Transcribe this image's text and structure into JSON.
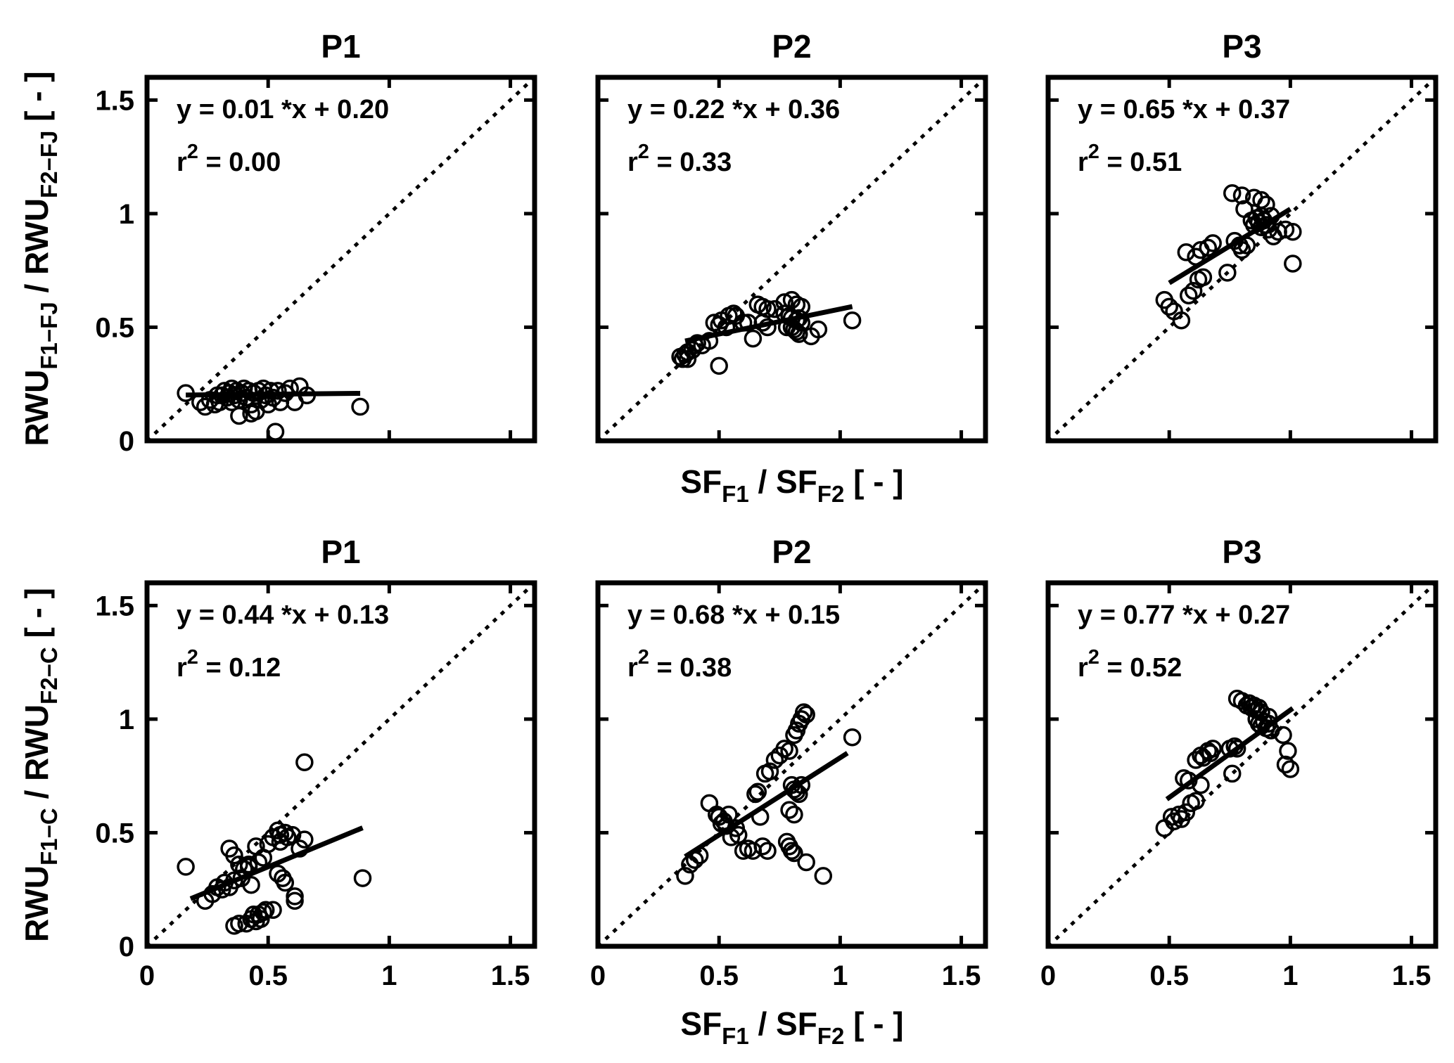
{
  "figure": {
    "background": "#ffffff",
    "ink_color": "#000000",
    "labels": {
      "x_axis": {
        "segments": [
          {
            "t": "SF",
            "sub": false
          },
          {
            "t": "F1",
            "sub": true
          },
          {
            "t": " / SF",
            "sub": false
          },
          {
            "t": "F2",
            "sub": true
          },
          {
            "t": " [ - ]",
            "sub": false
          }
        ]
      },
      "y_axis_top": {
        "segments": [
          {
            "t": "RWU",
            "sub": false
          },
          {
            "t": "F1−FJ",
            "sub": true
          },
          {
            "t": " / RWU",
            "sub": false
          },
          {
            "t": "F2−FJ",
            "sub": true
          },
          {
            "t": " [ - ]",
            "sub": false
          }
        ]
      },
      "y_axis_bottom": {
        "segments": [
          {
            "t": "RWU",
            "sub": false
          },
          {
            "t": "F1−C",
            "sub": true
          },
          {
            "t": " / RWU",
            "sub": false
          },
          {
            "t": "F2−C",
            "sub": true
          },
          {
            "t": " [ - ]",
            "sub": false
          }
        ]
      }
    }
  },
  "chart_data": {
    "type": "scatter",
    "grid": {
      "rows": 2,
      "cols": 3
    },
    "xlim": [
      0,
      1.6
    ],
    "ylim": [
      0,
      1.6
    ],
    "xticks": [
      0,
      0.5,
      1,
      1.5
    ],
    "yticks": [
      0,
      0.5,
      1,
      1.5
    ],
    "xtick_labels": [
      "0",
      "0.5",
      "1",
      "1.5"
    ],
    "ytick_labels": [
      "0",
      "0.5",
      "1",
      "1.5"
    ],
    "identity_line": "dotted 1:1 line",
    "marker": "open-circle",
    "panels": [
      {
        "row": 0,
        "col": 0,
        "title": "P1",
        "equation": "y = 0.01 *x + 0.20",
        "r2": "0.00",
        "slope": 0.01,
        "intercept": 0.2,
        "fit_range": [
          0.16,
          0.88
        ],
        "points": [
          [
            0.16,
            0.21
          ],
          [
            0.22,
            0.17
          ],
          [
            0.24,
            0.15
          ],
          [
            0.26,
            0.18
          ],
          [
            0.28,
            0.16
          ],
          [
            0.29,
            0.2
          ],
          [
            0.3,
            0.17
          ],
          [
            0.31,
            0.2
          ],
          [
            0.32,
            0.22
          ],
          [
            0.33,
            0.19
          ],
          [
            0.34,
            0.21
          ],
          [
            0.35,
            0.17
          ],
          [
            0.35,
            0.23
          ],
          [
            0.36,
            0.2
          ],
          [
            0.37,
            0.22
          ],
          [
            0.38,
            0.18
          ],
          [
            0.38,
            0.11
          ],
          [
            0.39,
            0.21
          ],
          [
            0.4,
            0.23
          ],
          [
            0.41,
            0.19
          ],
          [
            0.42,
            0.22
          ],
          [
            0.43,
            0.16
          ],
          [
            0.43,
            0.12
          ],
          [
            0.44,
            0.21
          ],
          [
            0.45,
            0.13
          ],
          [
            0.46,
            0.22
          ],
          [
            0.47,
            0.18
          ],
          [
            0.48,
            0.23
          ],
          [
            0.49,
            0.2
          ],
          [
            0.5,
            0.16
          ],
          [
            0.51,
            0.22
          ],
          [
            0.52,
            0.19
          ],
          [
            0.53,
            0.04
          ],
          [
            0.54,
            0.22
          ],
          [
            0.55,
            0.17
          ],
          [
            0.57,
            0.21
          ],
          [
            0.59,
            0.23
          ],
          [
            0.61,
            0.17
          ],
          [
            0.63,
            0.24
          ],
          [
            0.66,
            0.2
          ],
          [
            0.88,
            0.15
          ]
        ]
      },
      {
        "row": 0,
        "col": 1,
        "title": "P2",
        "equation": "y = 0.22 *x + 0.36",
        "r2": "0.33",
        "slope": 0.22,
        "intercept": 0.36,
        "fit_range": [
          0.36,
          1.05
        ],
        "points": [
          [
            0.34,
            0.37
          ],
          [
            0.35,
            0.36
          ],
          [
            0.36,
            0.38
          ],
          [
            0.37,
            0.39
          ],
          [
            0.37,
            0.36
          ],
          [
            0.39,
            0.4
          ],
          [
            0.4,
            0.42
          ],
          [
            0.41,
            0.43
          ],
          [
            0.43,
            0.42
          ],
          [
            0.46,
            0.44
          ],
          [
            0.48,
            0.52
          ],
          [
            0.5,
            0.51
          ],
          [
            0.5,
            0.33
          ],
          [
            0.51,
            0.53
          ],
          [
            0.53,
            0.5
          ],
          [
            0.54,
            0.55
          ],
          [
            0.56,
            0.56
          ],
          [
            0.57,
            0.55
          ],
          [
            0.6,
            0.52
          ],
          [
            0.62,
            0.52
          ],
          [
            0.64,
            0.45
          ],
          [
            0.66,
            0.6
          ],
          [
            0.68,
            0.59
          ],
          [
            0.7,
            0.58
          ],
          [
            0.73,
            0.58
          ],
          [
            0.68,
            0.52
          ],
          [
            0.7,
            0.5
          ],
          [
            0.77,
            0.61
          ],
          [
            0.8,
            0.62
          ],
          [
            0.82,
            0.6
          ],
          [
            0.84,
            0.59
          ],
          [
            0.77,
            0.56
          ],
          [
            0.79,
            0.55
          ],
          [
            0.8,
            0.54
          ],
          [
            0.82,
            0.53
          ],
          [
            0.83,
            0.54
          ],
          [
            0.84,
            0.52
          ],
          [
            0.8,
            0.5
          ],
          [
            0.81,
            0.49
          ],
          [
            0.82,
            0.48
          ],
          [
            0.83,
            0.47
          ],
          [
            0.78,
            0.5
          ],
          [
            0.88,
            0.46
          ],
          [
            0.91,
            0.49
          ],
          [
            1.05,
            0.53
          ]
        ]
      },
      {
        "row": 0,
        "col": 2,
        "title": "P3",
        "equation": "y = 0.65 *x + 0.37",
        "r2": "0.51",
        "slope": 0.65,
        "intercept": 0.37,
        "fit_range": [
          0.5,
          1.0
        ],
        "points": [
          [
            0.48,
            0.62
          ],
          [
            0.5,
            0.59
          ],
          [
            0.52,
            0.57
          ],
          [
            0.55,
            0.53
          ],
          [
            0.58,
            0.64
          ],
          [
            0.6,
            0.66
          ],
          [
            0.62,
            0.71
          ],
          [
            0.64,
            0.72
          ],
          [
            0.57,
            0.83
          ],
          [
            0.61,
            0.81
          ],
          [
            0.63,
            0.84
          ],
          [
            0.66,
            0.85
          ],
          [
            0.68,
            0.87
          ],
          [
            0.74,
            0.74
          ],
          [
            0.76,
            1.09
          ],
          [
            0.8,
            1.08
          ],
          [
            0.85,
            1.07
          ],
          [
            0.88,
            1.06
          ],
          [
            0.9,
            1.04
          ],
          [
            0.81,
            1.02
          ],
          [
            0.77,
            0.88
          ],
          [
            0.79,
            0.86
          ],
          [
            0.8,
            0.84
          ],
          [
            0.82,
            0.86
          ],
          [
            0.84,
            0.97
          ],
          [
            0.85,
            0.95
          ],
          [
            0.86,
            0.98
          ],
          [
            0.87,
            0.96
          ],
          [
            0.88,
            0.94
          ],
          [
            0.88,
            0.99
          ],
          [
            0.89,
            0.97
          ],
          [
            0.9,
            0.95
          ],
          [
            0.91,
            0.93
          ],
          [
            0.92,
            0.99
          ],
          [
            0.93,
            0.9
          ],
          [
            0.95,
            0.92
          ],
          [
            0.98,
            0.93
          ],
          [
            1.01,
            0.92
          ],
          [
            1.01,
            0.78
          ]
        ]
      },
      {
        "row": 1,
        "col": 0,
        "title": "P1",
        "equation": "y = 0.44 *x + 0.13",
        "r2": "0.12",
        "slope": 0.44,
        "intercept": 0.13,
        "fit_range": [
          0.18,
          0.89
        ],
        "points": [
          [
            0.16,
            0.35
          ],
          [
            0.24,
            0.2
          ],
          [
            0.27,
            0.23
          ],
          [
            0.29,
            0.26
          ],
          [
            0.31,
            0.25
          ],
          [
            0.32,
            0.28
          ],
          [
            0.34,
            0.26
          ],
          [
            0.36,
            0.29
          ],
          [
            0.39,
            0.3
          ],
          [
            0.38,
            0.36
          ],
          [
            0.4,
            0.34
          ],
          [
            0.42,
            0.35
          ],
          [
            0.42,
            0.36
          ],
          [
            0.34,
            0.43
          ],
          [
            0.36,
            0.4
          ],
          [
            0.43,
            0.27
          ],
          [
            0.36,
            0.09
          ],
          [
            0.38,
            0.1
          ],
          [
            0.41,
            0.1
          ],
          [
            0.43,
            0.12
          ],
          [
            0.44,
            0.14
          ],
          [
            0.45,
            0.11
          ],
          [
            0.46,
            0.14
          ],
          [
            0.47,
            0.12
          ],
          [
            0.48,
            0.15
          ],
          [
            0.49,
            0.16
          ],
          [
            0.52,
            0.16
          ],
          [
            0.61,
            0.2
          ],
          [
            0.5,
            0.45
          ],
          [
            0.52,
            0.48
          ],
          [
            0.54,
            0.51
          ],
          [
            0.55,
            0.49
          ],
          [
            0.55,
            0.46
          ],
          [
            0.57,
            0.5
          ],
          [
            0.58,
            0.48
          ],
          [
            0.6,
            0.49
          ],
          [
            0.63,
            0.43
          ],
          [
            0.65,
            0.47
          ],
          [
            0.65,
            0.81
          ],
          [
            0.54,
            0.32
          ],
          [
            0.56,
            0.3
          ],
          [
            0.57,
            0.28
          ],
          [
            0.61,
            0.22
          ],
          [
            0.46,
            0.37
          ],
          [
            0.48,
            0.39
          ],
          [
            0.45,
            0.44
          ],
          [
            0.89,
            0.3
          ]
        ]
      },
      {
        "row": 1,
        "col": 1,
        "title": "P2",
        "equation": "y = 0.68 *x + 0.15",
        "r2": "0.38",
        "slope": 0.68,
        "intercept": 0.15,
        "fit_range": [
          0.36,
          1.03
        ],
        "points": [
          [
            0.36,
            0.31
          ],
          [
            0.38,
            0.36
          ],
          [
            0.4,
            0.38
          ],
          [
            0.42,
            0.4
          ],
          [
            0.46,
            0.63
          ],
          [
            0.49,
            0.58
          ],
          [
            0.5,
            0.57
          ],
          [
            0.51,
            0.54
          ],
          [
            0.52,
            0.55
          ],
          [
            0.53,
            0.53
          ],
          [
            0.54,
            0.58
          ],
          [
            0.55,
            0.48
          ],
          [
            0.57,
            0.52
          ],
          [
            0.58,
            0.49
          ],
          [
            0.6,
            0.42
          ],
          [
            0.62,
            0.43
          ],
          [
            0.64,
            0.42
          ],
          [
            0.68,
            0.44
          ],
          [
            0.7,
            0.42
          ],
          [
            0.67,
            0.57
          ],
          [
            0.65,
            0.67
          ],
          [
            0.66,
            0.68
          ],
          [
            0.69,
            0.76
          ],
          [
            0.71,
            0.77
          ],
          [
            0.73,
            0.82
          ],
          [
            0.75,
            0.84
          ],
          [
            0.77,
            0.87
          ],
          [
            0.79,
            0.86
          ],
          [
            0.81,
            0.93
          ],
          [
            0.82,
            0.95
          ],
          [
            0.83,
            0.98
          ],
          [
            0.84,
            1.0
          ],
          [
            0.85,
            1.03
          ],
          [
            0.86,
            1.02
          ],
          [
            0.8,
            0.71
          ],
          [
            0.81,
            0.69
          ],
          [
            0.82,
            0.68
          ],
          [
            0.83,
            0.67
          ],
          [
            0.84,
            0.71
          ],
          [
            0.79,
            0.6
          ],
          [
            0.81,
            0.58
          ],
          [
            0.78,
            0.46
          ],
          [
            0.79,
            0.44
          ],
          [
            0.8,
            0.42
          ],
          [
            0.81,
            0.41
          ],
          [
            0.86,
            0.37
          ],
          [
            0.93,
            0.31
          ],
          [
            1.05,
            0.92
          ]
        ]
      },
      {
        "row": 1,
        "col": 2,
        "title": "P3",
        "equation": "y = 0.77 *x + 0.27",
        "r2": "0.52",
        "slope": 0.77,
        "intercept": 0.27,
        "fit_range": [
          0.49,
          1.01
        ],
        "points": [
          [
            0.48,
            0.52
          ],
          [
            0.51,
            0.57
          ],
          [
            0.52,
            0.55
          ],
          [
            0.54,
            0.58
          ],
          [
            0.55,
            0.56
          ],
          [
            0.57,
            0.59
          ],
          [
            0.59,
            0.63
          ],
          [
            0.61,
            0.64
          ],
          [
            0.56,
            0.74
          ],
          [
            0.58,
            0.73
          ],
          [
            0.63,
            0.71
          ],
          [
            0.61,
            0.82
          ],
          [
            0.63,
            0.84
          ],
          [
            0.64,
            0.83
          ],
          [
            0.66,
            0.86
          ],
          [
            0.67,
            0.85
          ],
          [
            0.68,
            0.87
          ],
          [
            0.75,
            0.87
          ],
          [
            0.77,
            0.88
          ],
          [
            0.78,
            0.87
          ],
          [
            0.76,
            0.76
          ],
          [
            0.78,
            1.09
          ],
          [
            0.8,
            1.08
          ],
          [
            0.82,
            1.06
          ],
          [
            0.83,
            1.07
          ],
          [
            0.84,
            1.05
          ],
          [
            0.85,
            1.06
          ],
          [
            0.86,
            1.04
          ],
          [
            0.87,
            1.05
          ],
          [
            0.88,
            1.03
          ],
          [
            0.86,
            1.0
          ],
          [
            0.87,
            0.98
          ],
          [
            0.88,
            0.97
          ],
          [
            0.89,
            0.99
          ],
          [
            0.9,
            0.96
          ],
          [
            0.91,
            1.01
          ],
          [
            0.91,
            0.98
          ],
          [
            0.92,
            0.95
          ],
          [
            0.97,
            0.93
          ],
          [
            0.99,
            0.86
          ],
          [
            0.98,
            0.8
          ],
          [
            1.0,
            0.78
          ]
        ]
      }
    ]
  }
}
